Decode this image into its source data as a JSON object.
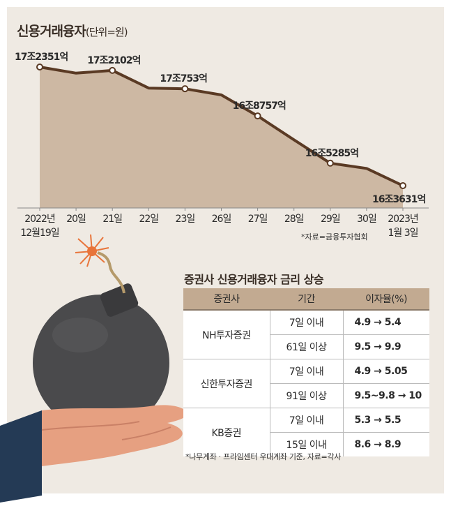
{
  "title": "신용거래융자",
  "unit": "(단위=원)",
  "colors": {
    "panel": "#efeae3",
    "area_fill": "#cdb8a3",
    "line": "#5a3a24",
    "table_header": "#c2aa91",
    "bomb": "#4a4a4c",
    "sleeve": "#243a55",
    "hand": "#e6a081"
  },
  "chart_data": {
    "type": "area",
    "x_labels": [
      [
        "2022년",
        "12월19일"
      ],
      [
        "20일"
      ],
      [
        "21일"
      ],
      [
        "22일"
      ],
      [
        "23일"
      ],
      [
        "26일"
      ],
      [
        "27일"
      ],
      [
        "28일"
      ],
      [
        "29일"
      ],
      [
        "30일"
      ],
      [
        "2023년",
        "1월 3일"
      ]
    ],
    "values_eok": [
      172351,
      171900,
      172102,
      170800,
      170753,
      170300,
      168757,
      167000,
      165285,
      164900,
      163631
    ],
    "point_labels": [
      {
        "index": 0,
        "text": "17조2351억"
      },
      {
        "index": 2,
        "text": "17조2102억"
      },
      {
        "index": 4,
        "text": "17조753억"
      },
      {
        "index": 6,
        "text": "16조8757억"
      },
      {
        "index": 8,
        "text": "16조5285억"
      },
      {
        "index": 10,
        "text": "16조3631억"
      }
    ]
  },
  "source": "*자료=금융투자협회",
  "table": {
    "title": "증권사 신용거래융자 금리 상승",
    "headers": [
      "증권사",
      "기간",
      "이자율(%)"
    ],
    "groups": [
      {
        "firm": "NH투자증권",
        "rows": [
          {
            "period": "7일 이내",
            "rate": "4.9 → 5.4"
          },
          {
            "period": "61일 이상",
            "rate": "9.5 → 9.9"
          }
        ]
      },
      {
        "firm": "신한투자증권",
        "rows": [
          {
            "period": "7일 이내",
            "rate": "4.9 → 5.05"
          },
          {
            "period": "91일 이상",
            "rate": "9.5~9.8 → 10"
          }
        ]
      },
      {
        "firm": "KB증권",
        "rows": [
          {
            "period": "7일 이내",
            "rate": "5.3 → 5.5"
          },
          {
            "period": "15일 이내",
            "rate": "8.6 → 8.9"
          }
        ]
      }
    ]
  },
  "footnote": "*나무계좌 · 프라임센터 우대계좌 기준, 자료=각사",
  "illustration": {
    "icons": [
      "bomb-icon",
      "hand-icon",
      "spark-icon"
    ]
  }
}
